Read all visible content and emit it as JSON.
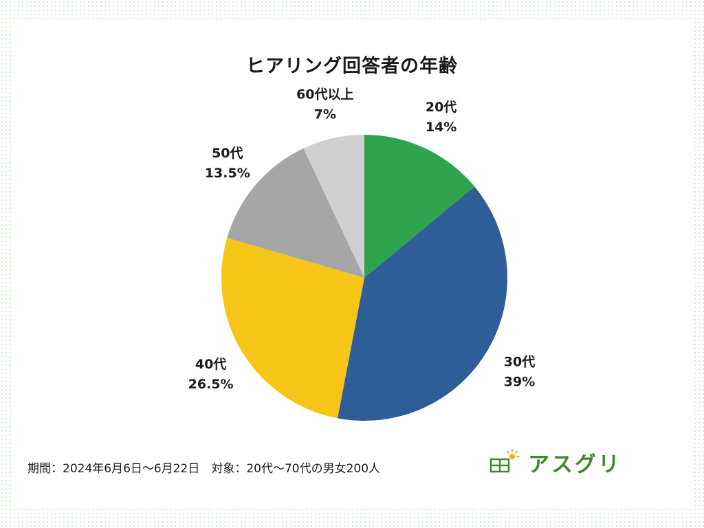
{
  "chart_data": {
    "type": "pie",
    "title": "ヒアリング回答者の年齢",
    "start_angle_deg": 0,
    "direction": "clockwise",
    "slices": [
      {
        "label": "20代",
        "value": 14,
        "value_label": "14%",
        "color": "#2EA44F"
      },
      {
        "label": "30代",
        "value": 39,
        "value_label": "39%",
        "color": "#2F5D98"
      },
      {
        "label": "40代",
        "value": 26.5,
        "value_label": "26.5%",
        "color": "#F5C518"
      },
      {
        "label": "50代",
        "value": 13.5,
        "value_label": "13.5%",
        "color": "#A6A6A6"
      },
      {
        "label": "60代以上",
        "value": 7,
        "value_label": "7%",
        "color": "#D0D0D0"
      }
    ]
  },
  "footnote": "期間：2024年6月6日〜6月22日　対象：20代〜70代の男女200人",
  "logo": {
    "text": "アスグリ",
    "icon": "solar-panel-sun-icon",
    "color": "#3F8A2F",
    "sun_color": "#F2B01E"
  }
}
